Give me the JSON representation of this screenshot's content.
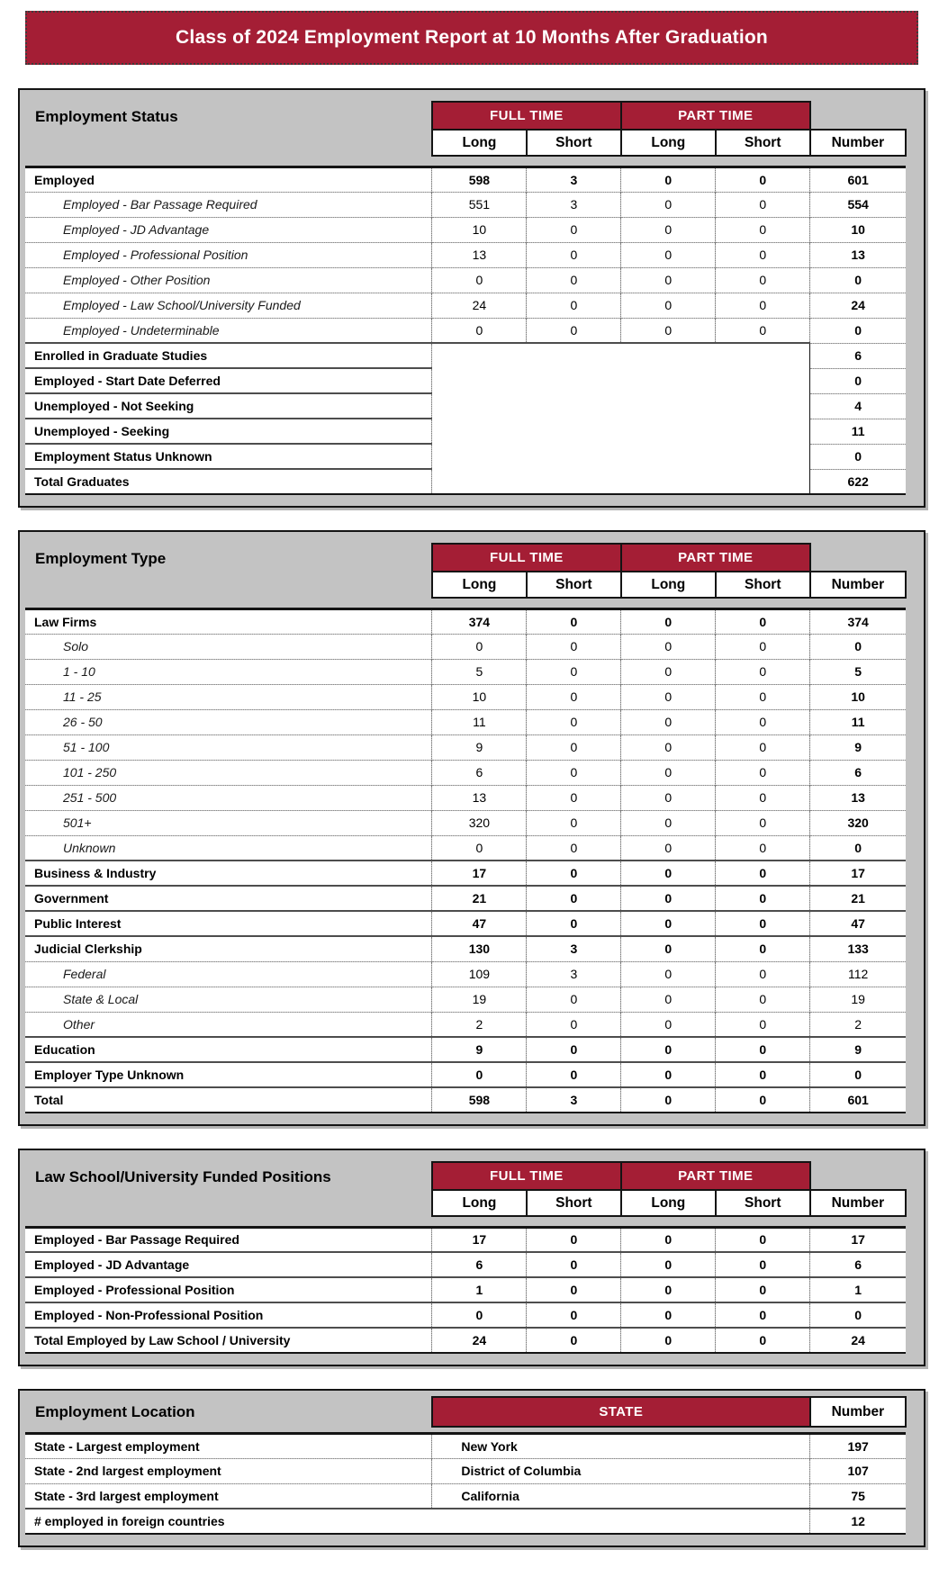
{
  "title": "Class of 2024 Employment Report at 10 Months After Graduation",
  "colors": {
    "accent_maroon": "#A41E35",
    "header_gray": "#C3C3C3"
  },
  "shared_headers": {
    "full_time": "FULL TIME",
    "part_time": "PART TIME",
    "long": "Long",
    "short": "Short",
    "number": "Number",
    "state": "STATE"
  },
  "tables": [
    {
      "id": "employment-status",
      "title": "Employment Status",
      "layout": "five-col",
      "rows": [
        {
          "label": "Employed",
          "style": "major",
          "divider": "solid",
          "cells": [
            "598",
            "3",
            "0",
            "0"
          ],
          "number": "601",
          "number_bold": true
        },
        {
          "label": "Employed - Bar Passage Required",
          "style": "sub",
          "divider": "dot",
          "cells": [
            "551",
            "3",
            "0",
            "0"
          ],
          "number": "554",
          "number_bold": true
        },
        {
          "label": "Employed - JD Advantage",
          "style": "sub",
          "divider": "dot",
          "cells": [
            "10",
            "0",
            "0",
            "0"
          ],
          "number": "10",
          "number_bold": true
        },
        {
          "label": "Employed - Professional Position",
          "style": "sub",
          "divider": "dot",
          "cells": [
            "13",
            "0",
            "0",
            "0"
          ],
          "number": "13",
          "number_bold": true
        },
        {
          "label": "Employed - Other Position",
          "style": "sub",
          "divider": "dot",
          "cells": [
            "0",
            "0",
            "0",
            "0"
          ],
          "number": "0",
          "number_bold": true
        },
        {
          "label": "Employed - Law School/University Funded",
          "style": "sub",
          "divider": "dot",
          "cells": [
            "24",
            "0",
            "0",
            "0"
          ],
          "number": "24",
          "number_bold": true
        },
        {
          "label": "Employed - Undeterminable",
          "style": "sub",
          "divider": "dot",
          "cells": [
            "0",
            "0",
            "0",
            "0"
          ],
          "number": "0",
          "number_bold": true
        },
        {
          "label": "Enrolled in Graduate Studies",
          "style": "major",
          "divider": "solid",
          "cells": null,
          "number": "6",
          "number_bold": true
        },
        {
          "label": "Employed - Start Date Deferred",
          "style": "major",
          "divider": "solid",
          "cells": null,
          "number": "0",
          "number_bold": true
        },
        {
          "label": "Unemployed - Not Seeking",
          "style": "major",
          "divider": "solid",
          "cells": null,
          "number": "4",
          "number_bold": true
        },
        {
          "label": "Unemployed - Seeking",
          "style": "major",
          "divider": "solid",
          "cells": null,
          "number": "11",
          "number_bold": true
        },
        {
          "label": "Employment Status Unknown",
          "style": "major",
          "divider": "solid",
          "cells": null,
          "number": "0",
          "number_bold": true
        },
        {
          "label": "Total Graduates",
          "style": "major",
          "divider": "solid",
          "cells": null,
          "number": "622",
          "number_bold": true
        }
      ]
    },
    {
      "id": "employment-type",
      "title": "Employment Type",
      "layout": "five-col",
      "rows": [
        {
          "label": "Law Firms",
          "style": "major",
          "divider": "solid",
          "cells": [
            "374",
            "0",
            "0",
            "0"
          ],
          "number": "374",
          "number_bold": true
        },
        {
          "label": "Solo",
          "style": "sub",
          "divider": "dot",
          "cells": [
            "0",
            "0",
            "0",
            "0"
          ],
          "number": "0",
          "number_bold": true
        },
        {
          "label": "1 - 10",
          "style": "sub",
          "divider": "dot",
          "cells": [
            "5",
            "0",
            "0",
            "0"
          ],
          "number": "5",
          "number_bold": true
        },
        {
          "label": "11 - 25",
          "style": "sub",
          "divider": "dot",
          "cells": [
            "10",
            "0",
            "0",
            "0"
          ],
          "number": "10",
          "number_bold": true
        },
        {
          "label": "26 - 50",
          "style": "sub",
          "divider": "dot",
          "cells": [
            "11",
            "0",
            "0",
            "0"
          ],
          "number": "11",
          "number_bold": true
        },
        {
          "label": "51 - 100",
          "style": "sub",
          "divider": "dot",
          "cells": [
            "9",
            "0",
            "0",
            "0"
          ],
          "number": "9",
          "number_bold": true
        },
        {
          "label": "101 - 250",
          "style": "sub",
          "divider": "dot",
          "cells": [
            "6",
            "0",
            "0",
            "0"
          ],
          "number": "6",
          "number_bold": true
        },
        {
          "label": "251 - 500",
          "style": "sub",
          "divider": "dot",
          "cells": [
            "13",
            "0",
            "0",
            "0"
          ],
          "number": "13",
          "number_bold": true
        },
        {
          "label": "501+",
          "style": "sub",
          "divider": "dot",
          "cells": [
            "320",
            "0",
            "0",
            "0"
          ],
          "number": "320",
          "number_bold": true
        },
        {
          "label": "Unknown",
          "style": "sub",
          "divider": "dot",
          "cells": [
            "0",
            "0",
            "0",
            "0"
          ],
          "number": "0",
          "number_bold": true
        },
        {
          "label": "Business & Industry",
          "style": "major",
          "divider": "solid",
          "cells": [
            "17",
            "0",
            "0",
            "0"
          ],
          "number": "17",
          "number_bold": true
        },
        {
          "label": "Government",
          "style": "major",
          "divider": "solid",
          "cells": [
            "21",
            "0",
            "0",
            "0"
          ],
          "number": "21",
          "number_bold": true
        },
        {
          "label": "Public Interest",
          "style": "major",
          "divider": "solid",
          "cells": [
            "47",
            "0",
            "0",
            "0"
          ],
          "number": "47",
          "number_bold": true
        },
        {
          "label": "Judicial Clerkship",
          "style": "major",
          "divider": "solid",
          "cells": [
            "130",
            "3",
            "0",
            "0"
          ],
          "number": "133",
          "number_bold": true
        },
        {
          "label": "Federal",
          "style": "sub",
          "divider": "dot",
          "cells": [
            "109",
            "3",
            "0",
            "0"
          ],
          "number": "112",
          "number_bold": false
        },
        {
          "label": "State & Local",
          "style": "sub",
          "divider": "dot",
          "cells": [
            "19",
            "0",
            "0",
            "0"
          ],
          "number": "19",
          "number_bold": false
        },
        {
          "label": "Other",
          "style": "sub",
          "divider": "dot",
          "cells": [
            "2",
            "0",
            "0",
            "0"
          ],
          "number": "2",
          "number_bold": false
        },
        {
          "label": "Education",
          "style": "major",
          "divider": "solid",
          "cells": [
            "9",
            "0",
            "0",
            "0"
          ],
          "number": "9",
          "number_bold": true
        },
        {
          "label": "Employer Type Unknown",
          "style": "major",
          "divider": "solid",
          "cells": [
            "0",
            "0",
            "0",
            "0"
          ],
          "number": "0",
          "number_bold": true
        },
        {
          "label": "Total",
          "style": "major",
          "divider": "solid",
          "cells": [
            "598",
            "3",
            "0",
            "0"
          ],
          "number": "601",
          "number_bold": true
        }
      ]
    },
    {
      "id": "funded-positions",
      "title": "Law School/University Funded Positions",
      "layout": "five-col",
      "rows": [
        {
          "label": "Employed - Bar Passage Required",
          "style": "major",
          "divider": "solid",
          "cells": [
            "17",
            "0",
            "0",
            "0"
          ],
          "number": "17",
          "number_bold": true
        },
        {
          "label": "Employed - JD Advantage",
          "style": "major",
          "divider": "solid",
          "cells": [
            "6",
            "0",
            "0",
            "0"
          ],
          "number": "6",
          "number_bold": true
        },
        {
          "label": "Employed - Professional Position",
          "style": "major",
          "divider": "solid",
          "cells": [
            "1",
            "0",
            "0",
            "0"
          ],
          "number": "1",
          "number_bold": true
        },
        {
          "label": "Employed - Non-Professional Position",
          "style": "major",
          "divider": "solid",
          "cells": [
            "0",
            "0",
            "0",
            "0"
          ],
          "number": "0",
          "number_bold": true
        },
        {
          "label": "Total Employed by Law School / University",
          "style": "major",
          "divider": "solid",
          "cells": [
            "24",
            "0",
            "0",
            "0"
          ],
          "number": "24",
          "number_bold": true
        }
      ]
    },
    {
      "id": "employment-location",
      "title": "Employment Location",
      "layout": "state",
      "rows": [
        {
          "label": "State - Largest employment",
          "style": "major",
          "divider": "solid",
          "state": "New York",
          "number": "197",
          "number_bold": true
        },
        {
          "label": "State - 2nd largest employment",
          "style": "major",
          "divider": "dot",
          "state": "District of Columbia",
          "number": "107",
          "number_bold": true
        },
        {
          "label": "State - 3rd largest employment",
          "style": "major",
          "divider": "dot",
          "state": "California",
          "number": "75",
          "number_bold": true
        },
        {
          "label": "# employed in foreign countries",
          "style": "major",
          "divider": "solid",
          "state": null,
          "number": "12",
          "number_bold": true
        }
      ]
    }
  ]
}
